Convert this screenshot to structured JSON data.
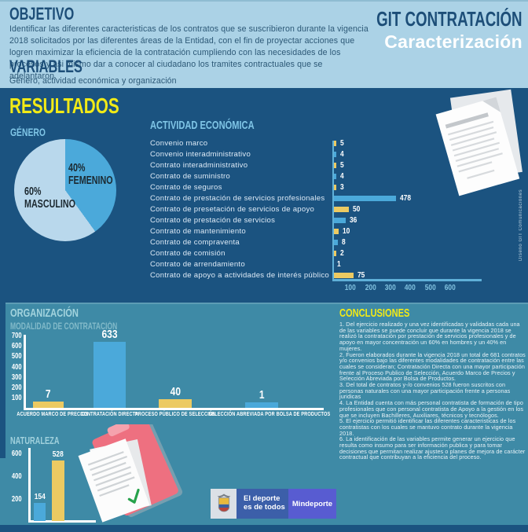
{
  "colors": {
    "yellow": "#ecca62",
    "blue": "#4ba9da",
    "pale": "#b9d8ec",
    "accent_yellow": "#f2ea16",
    "dark_blue": "#1b5380",
    "teal": "#3e8aa6",
    "light_header": "#abd2e6"
  },
  "header": {
    "objetivo_title": "OBJETIVO",
    "objetivo_text": "Identificar las diferentes caracteristicas de los contratos que se suscribieron durante la vigencia 2018 solicitados por las diferentes áreas de la Entidad, con el fin de proyectar acciones que logren maximizar la eficiencia de la contratación cumpliendo con las necesidades de los procesos y asi mismo dar a conocer al ciudadano los tramites contractuales que se adelantaron.",
    "variables_title": "VARIABLES",
    "variables_text": "Género, actividad económica y organización",
    "brand_line1": "GIT CONTRATACIÓN",
    "brand_line2": "Caracterización"
  },
  "results": {
    "title": "RESULTADOS",
    "genero": {
      "title": "GÉNERO",
      "slices": [
        {
          "label": "FEMENINO",
          "pct": 40,
          "pct_label": "40%",
          "color": "blue"
        },
        {
          "label": "MASCULINO",
          "pct": 60,
          "pct_label": "60%",
          "color": "pale"
        }
      ]
    },
    "actividad": {
      "title": "ACTIVIDAD ECONÓMICA",
      "items": [
        {
          "label": "Convenio marco",
          "value": 5,
          "color": "yellow"
        },
        {
          "label": "Convenio interadministrativo",
          "value": 4,
          "color": "blue"
        },
        {
          "label": "Contrato interadministrativo",
          "value": 5,
          "color": "yellow"
        },
        {
          "label": "Contrato de suministro",
          "value": 4,
          "color": "blue"
        },
        {
          "label": "Contrato de seguros",
          "value": 3,
          "color": "yellow"
        },
        {
          "label": "Contrato de prestación de servicios profesionales",
          "value": 478,
          "color": "blue"
        },
        {
          "label": "Contrato de presetación de servicios de apoyo",
          "value": 50,
          "color": "yellow"
        },
        {
          "label": "Contrato de prestación de servicios",
          "value": 36,
          "color": "blue"
        },
        {
          "label": "Contrato de mantenimiento",
          "value": 10,
          "color": "yellow"
        },
        {
          "label": "Contrato de compraventa",
          "value": 8,
          "color": "blue"
        },
        {
          "label": "Contrato de comisión",
          "value": 2,
          "color": "yellow"
        },
        {
          "label": "Contrato de arrendamiento",
          "value": 1,
          "color": "blue"
        },
        {
          "label": "Contrato de apoyo a actividades de interés público",
          "value": 75,
          "color": "yellow"
        }
      ],
      "xticks": [
        "100",
        "200",
        "300",
        "400",
        "500",
        "600"
      ]
    }
  },
  "organizacion": {
    "title": "ORGANIZACIÓN",
    "subtitle": "MODALIDAD DE CONTRATACIÓN",
    "modalidad": {
      "yticks": [
        "700",
        "600",
        "500",
        "400",
        "300",
        "200",
        "100"
      ],
      "categories": [
        {
          "label": "ACUERDO MARCO DE PRECIOS",
          "value": 7,
          "color": "yellow"
        },
        {
          "label": "CONTRATACIÓN DIRECTA",
          "value": 633,
          "color": "blue"
        },
        {
          "label": "PROCESO PÚBLICO DE SELECCIÓN",
          "value": 40,
          "color": "yellow"
        },
        {
          "label": "SELECCIÓN ABREVIADA POR BOLSA DE PRODUCTOS",
          "value": 1,
          "color": "blue"
        }
      ]
    }
  },
  "naturaleza": {
    "title": "NATURALEZA",
    "yticks": [
      "600",
      "400",
      "200"
    ],
    "bars": [
      {
        "value": 154,
        "color": "blue"
      },
      {
        "value": 528,
        "color": "yellow"
      }
    ]
  },
  "conclusiones": {
    "title": "CONCLUSIONES",
    "items": [
      "1. Del ejercicio realizado y una vez identificadas y validadas cada una de las variables se puede concluir que durante la vigencia 2018 se realizó la contratación por prestación de servicios profesionales y de apoyo en mayor concentración un 60% en hombres y un 40% en mujeres.",
      "2. Fueron elaborados durante la vigencia 2018 un total de 681 contratos y/o convenios bajo las diferentes modalidades de contratación entre las cuales se consideran; Contratación Directa con una mayor participación frente al Proceso Publico de Selección, Acuerdo Marco de Precios y Selección Abreviada por Bolsa de Productos.",
      "3. Del total de contratos y-/o convenios 528 fueron suscritos con personas naturales con una mayor participación frente a personas juridicas",
      "4. La Entidad cuenta con más personal contratista de formación de tipo profesionales que con personal contratista de Apoyo a la gestión en los que se incluyen Bachilleres, Auxiliares, técnicos y tecnólogos.",
      "5. El ejercicio permitió identificar las diferentes caracteristicas de los contratistas con los cuales se mantuvo contrato durante la vigencia 2018.",
      "6. La identificación de las variables permite generar un ejercicio que resulta como insumo para ser información publica y para tomar decisiones que permitan realizar ajustes o planes de mejora de carácter contractual que contribuyan a la eficiencia del proceso."
    ]
  },
  "footer": {
    "deporte_line1": "El deporte",
    "deporte_line2": "es de todos",
    "mindeporte": "Mindeporte"
  },
  "credit": "Diseño GIT Comunicaciones",
  "chart_data": [
    {
      "type": "pie",
      "title": "GÉNERO",
      "labels": [
        "FEMENINO",
        "MASCULINO"
      ],
      "values": [
        40,
        60
      ],
      "unit": "%",
      "colors": [
        "#4ba9da",
        "#b9d8ec"
      ]
    },
    {
      "type": "bar",
      "orientation": "horizontal",
      "title": "ACTIVIDAD ECONÓMICA",
      "categories": [
        "Convenio marco",
        "Convenio interadministrativo",
        "Contrato interadministrativo",
        "Contrato de suministro",
        "Contrato de seguros",
        "Contrato de prestación de servicios profesionales",
        "Contrato de presetación de servicios de apoyo",
        "Contrato de prestación de servicios",
        "Contrato de mantenimiento",
        "Contrato de compraventa",
        "Contrato de comisión",
        "Contrato de arrendamiento",
        "Contrato de apoyo a actividades de interés público"
      ],
      "values": [
        5,
        4,
        5,
        4,
        3,
        478,
        50,
        36,
        10,
        8,
        2,
        1,
        75
      ],
      "xlim": [
        0,
        600
      ],
      "xticks": [
        100,
        200,
        300,
        400,
        500,
        600
      ],
      "bar_colors_alternate": [
        "#ecca62",
        "#4ba9da"
      ]
    },
    {
      "type": "bar",
      "orientation": "vertical",
      "title": "ORGANIZACIÓN - MODALIDAD DE CONTRATACIÓN",
      "categories": [
        "ACUERDO MARCO DE PRECIOS",
        "CONTRATACIÓN DIRECTA",
        "PROCESO PÚBLICO DE SELECCIÓN",
        "SELECCIÓN ABREVIADA POR BOLSA DE PRODUCTOS"
      ],
      "values": [
        7,
        633,
        40,
        1
      ],
      "ylim": [
        0,
        700
      ],
      "yticks": [
        100,
        200,
        300,
        400,
        500,
        600,
        700
      ],
      "bar_colors": [
        "#ecca62",
        "#4ba9da",
        "#ecca62",
        "#4ba9da"
      ]
    },
    {
      "type": "bar",
      "orientation": "vertical",
      "title": "NATURALEZA",
      "categories": [
        "",
        ""
      ],
      "values": [
        154,
        528
      ],
      "ylim": [
        0,
        600
      ],
      "yticks": [
        200,
        400,
        600
      ],
      "bar_colors": [
        "#4ba9da",
        "#ecca62"
      ]
    }
  ]
}
